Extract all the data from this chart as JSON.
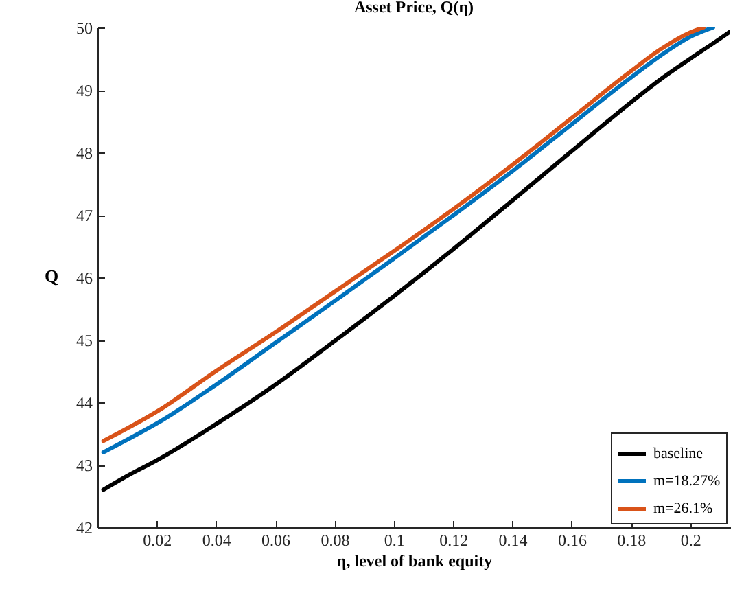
{
  "chart_data": {
    "type": "line",
    "title": "Asset Price, Q(η)",
    "xlabel": "η, level of bank equity",
    "ylabel": "Q",
    "xlim": [
      0,
      0.2135
    ],
    "xticks": [
      0.02,
      0.04,
      0.06,
      0.08,
      0.1,
      0.12,
      0.14,
      0.16,
      0.18,
      0.2
    ],
    "ylim": [
      42,
      50
    ],
    "yticks": [
      42,
      43,
      44,
      45,
      46,
      47,
      48,
      49,
      50
    ],
    "grid": false,
    "legend": "bottom right",
    "marker": "none",
    "line_style": "solid",
    "series": [
      {
        "name": "baseline",
        "color": "#000000",
        "x": [
          0.002,
          0.01,
          0.02,
          0.04,
          0.06,
          0.08,
          0.1,
          0.12,
          0.14,
          0.16,
          0.18,
          0.19,
          0.2,
          0.21,
          0.2133
        ],
        "values": [
          42.6,
          42.82,
          43.07,
          43.65,
          44.28,
          44.98,
          45.7,
          46.45,
          47.23,
          48.02,
          48.8,
          49.17,
          49.5,
          49.82,
          49.93
        ]
      },
      {
        "name": "m=18.27%",
        "color": "#0072bd",
        "x": [
          0.002,
          0.01,
          0.02,
          0.04,
          0.06,
          0.08,
          0.1,
          0.12,
          0.14,
          0.16,
          0.18,
          0.19,
          0.2,
          0.2077
        ],
        "values": [
          43.2,
          43.4,
          43.66,
          44.28,
          44.95,
          45.62,
          46.3,
          46.99,
          47.7,
          48.45,
          49.2,
          49.55,
          49.85,
          50
        ]
      },
      {
        "name": "m=26.1%",
        "color": "#d95319",
        "x": [
          0.002,
          0.01,
          0.02,
          0.04,
          0.06,
          0.08,
          0.1,
          0.12,
          0.14,
          0.16,
          0.18,
          0.19,
          0.2,
          0.2045
        ],
        "values": [
          43.38,
          43.58,
          43.85,
          44.5,
          45.12,
          45.77,
          46.42,
          47.09,
          47.8,
          48.55,
          49.3,
          49.65,
          49.92,
          50
        ]
      }
    ]
  }
}
